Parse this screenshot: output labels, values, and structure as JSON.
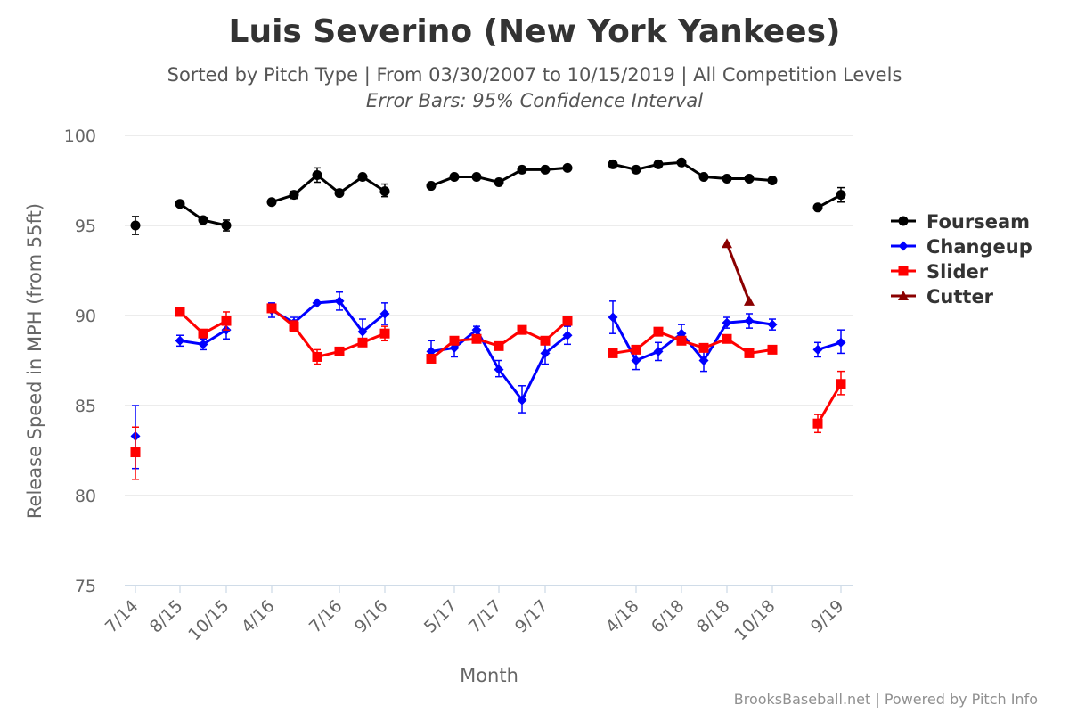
{
  "chart_data": {
    "type": "line",
    "title": "Luis Severino (New York Yankees)",
    "subtitle": "Sorted by Pitch Type | From 03/30/2007 to 10/15/2019 | All Competition Levels",
    "subtitle2": "Error Bars: 95% Confidence Interval",
    "xlabel": "Month",
    "ylabel": "Release Speed in MPH (from 55ft)",
    "ylim": [
      75,
      100
    ],
    "yticks": [
      "75",
      "80",
      "85",
      "90",
      "95",
      "100"
    ],
    "x_tick_labels": [
      "7/14",
      "8/15",
      "10/15",
      "4/16",
      "7/16",
      "9/16",
      "5/17",
      "7/17",
      "9/17",
      "4/18",
      "6/18",
      "8/18",
      "10/18",
      "9/19"
    ],
    "legend_position": "right",
    "credits": "BrooksBaseball.net | Powered by Pitch Info",
    "series": [
      {
        "name": "Fourseam",
        "color": "#000000",
        "marker": "circle",
        "segments": [
          [
            {
              "x": "7/14",
              "y": 95.0,
              "lo": 94.5,
              "hi": 95.5
            }
          ],
          [
            {
              "x": "8/15",
              "y": 96.2
            },
            {
              "x": "9/15",
              "y": 95.3
            },
            {
              "x": "10/15",
              "y": 95.0,
              "lo": 94.7,
              "hi": 95.3
            }
          ],
          [
            {
              "x": "4/16",
              "y": 96.3
            },
            {
              "x": "5/16",
              "y": 96.7,
              "lo": 96.5,
              "hi": 96.9
            },
            {
              "x": "6/16",
              "y": 97.8,
              "lo": 97.4,
              "hi": 98.2
            },
            {
              "x": "7/16",
              "y": 96.8
            },
            {
              "x": "8/16",
              "y": 97.7
            },
            {
              "x": "9/16",
              "y": 96.9,
              "lo": 96.6,
              "hi": 97.3
            }
          ],
          [
            {
              "x": "4/17",
              "y": 97.2
            },
            {
              "x": "5/17",
              "y": 97.7
            },
            {
              "x": "6/17",
              "y": 97.7
            },
            {
              "x": "7/17",
              "y": 97.4
            },
            {
              "x": "8/17",
              "y": 98.1
            },
            {
              "x": "9/17",
              "y": 98.1
            },
            {
              "x": "10/17",
              "y": 98.2
            }
          ],
          [
            {
              "x": "3/18",
              "y": 98.4,
              "lo": 98.2,
              "hi": 98.6
            },
            {
              "x": "4/18",
              "y": 98.1
            },
            {
              "x": "5/18",
              "y": 98.4
            },
            {
              "x": "6/18",
              "y": 98.5
            },
            {
              "x": "7/18",
              "y": 97.7
            },
            {
              "x": "8/18",
              "y": 97.6
            },
            {
              "x": "9/18",
              "y": 97.6
            },
            {
              "x": "10/18",
              "y": 97.5
            }
          ],
          [
            {
              "x": "8/19",
              "y": 96.0
            },
            {
              "x": "9/19",
              "y": 96.7,
              "lo": 96.3,
              "hi": 97.1
            }
          ]
        ]
      },
      {
        "name": "Changeup",
        "color": "#0000ff",
        "marker": "diamond",
        "segments": [
          [
            {
              "x": "7/14",
              "y": 83.3,
              "lo": 81.5,
              "hi": 85.0
            }
          ],
          [
            {
              "x": "8/15",
              "y": 88.6,
              "lo": 88.3,
              "hi": 88.9
            },
            {
              "x": "9/15",
              "y": 88.4,
              "lo": 88.1,
              "hi": 88.7
            },
            {
              "x": "10/15",
              "y": 89.2,
              "lo": 88.7,
              "hi": 89.7
            }
          ],
          [
            {
              "x": "4/16",
              "y": 90.3,
              "lo": 89.9,
              "hi": 90.7
            },
            {
              "x": "5/16",
              "y": 89.6,
              "lo": 89.3,
              "hi": 89.9
            },
            {
              "x": "6/16",
              "y": 90.7
            },
            {
              "x": "7/16",
              "y": 90.8,
              "lo": 90.3,
              "hi": 91.3
            },
            {
              "x": "8/16",
              "y": 89.1,
              "lo": 88.5,
              "hi": 89.8
            },
            {
              "x": "9/16",
              "y": 90.1,
              "lo": 89.5,
              "hi": 90.7
            }
          ],
          [
            {
              "x": "4/17",
              "y": 88.0,
              "lo": 87.5,
              "hi": 88.6
            },
            {
              "x": "5/17",
              "y": 88.2,
              "lo": 87.7,
              "hi": 88.7
            },
            {
              "x": "6/17",
              "y": 89.2,
              "lo": 88.9,
              "hi": 89.4
            },
            {
              "x": "7/17",
              "y": 87.0,
              "lo": 86.6,
              "hi": 87.5
            },
            {
              "x": "8/17",
              "y": 85.3,
              "lo": 84.6,
              "hi": 86.1
            },
            {
              "x": "9/17",
              "y": 87.9,
              "lo": 87.3,
              "hi": 88.6
            },
            {
              "x": "10/17",
              "y": 88.9,
              "lo": 88.4,
              "hi": 89.4
            }
          ],
          [
            {
              "x": "3/18",
              "y": 89.9,
              "lo": 89.0,
              "hi": 90.8
            },
            {
              "x": "4/18",
              "y": 87.5,
              "lo": 87.0,
              "hi": 88.0
            },
            {
              "x": "5/18",
              "y": 88.0,
              "lo": 87.5,
              "hi": 88.5
            },
            {
              "x": "6/18",
              "y": 89.0,
              "lo": 88.5,
              "hi": 89.5
            },
            {
              "x": "7/18",
              "y": 87.5,
              "lo": 86.9,
              "hi": 88.1
            },
            {
              "x": "8/18",
              "y": 89.6,
              "lo": 89.3,
              "hi": 89.9
            },
            {
              "x": "9/18",
              "y": 89.7,
              "lo": 89.3,
              "hi": 90.1
            },
            {
              "x": "10/18",
              "y": 89.5,
              "lo": 89.2,
              "hi": 89.8
            }
          ],
          [
            {
              "x": "8/19",
              "y": 88.1,
              "lo": 87.7,
              "hi": 88.5
            },
            {
              "x": "9/19",
              "y": 88.5,
              "lo": 87.9,
              "hi": 89.2
            }
          ]
        ]
      },
      {
        "name": "Slider",
        "color": "#ff0000",
        "marker": "square",
        "segments": [
          [
            {
              "x": "7/14",
              "y": 82.4,
              "lo": 80.9,
              "hi": 83.8
            }
          ],
          [
            {
              "x": "8/15",
              "y": 90.2
            },
            {
              "x": "9/15",
              "y": 89.0
            },
            {
              "x": "10/15",
              "y": 89.7,
              "lo": 89.2,
              "hi": 90.2
            }
          ],
          [
            {
              "x": "4/16",
              "y": 90.4
            },
            {
              "x": "5/16",
              "y": 89.4,
              "lo": 89.1,
              "hi": 89.7
            },
            {
              "x": "6/16",
              "y": 87.7,
              "lo": 87.3,
              "hi": 88.1
            },
            {
              "x": "7/16",
              "y": 88.0
            },
            {
              "x": "8/16",
              "y": 88.5
            },
            {
              "x": "9/16",
              "y": 89.0,
              "lo": 88.6,
              "hi": 89.4
            }
          ],
          [
            {
              "x": "4/17",
              "y": 87.6
            },
            {
              "x": "5/17",
              "y": 88.6
            },
            {
              "x": "6/17",
              "y": 88.7
            },
            {
              "x": "7/17",
              "y": 88.3
            },
            {
              "x": "8/17",
              "y": 89.2
            },
            {
              "x": "9/17",
              "y": 88.6
            },
            {
              "x": "10/17",
              "y": 89.7
            }
          ],
          [
            {
              "x": "3/18",
              "y": 87.9
            },
            {
              "x": "4/18",
              "y": 88.1
            },
            {
              "x": "5/18",
              "y": 89.1
            },
            {
              "x": "6/18",
              "y": 88.6
            },
            {
              "x": "7/18",
              "y": 88.2
            },
            {
              "x": "8/18",
              "y": 88.7
            },
            {
              "x": "9/18",
              "y": 87.9
            },
            {
              "x": "10/18",
              "y": 88.1
            }
          ],
          [
            {
              "x": "8/19",
              "y": 84.0,
              "lo": 83.5,
              "hi": 84.5
            },
            {
              "x": "9/19",
              "y": 86.2,
              "lo": 85.6,
              "hi": 86.9
            }
          ]
        ]
      },
      {
        "name": "Cutter",
        "color": "#8b0000",
        "marker": "triangle",
        "segments": [
          [
            {
              "x": "8/18",
              "y": 94.0
            },
            {
              "x": "9/18",
              "y": 90.8
            }
          ]
        ]
      }
    ]
  }
}
